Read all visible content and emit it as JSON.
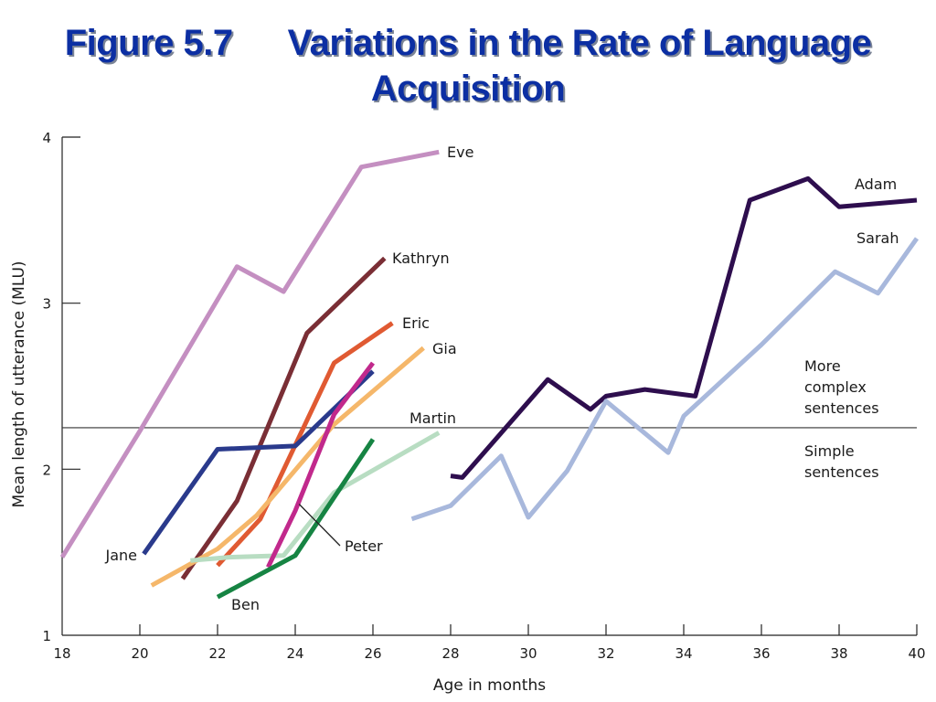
{
  "title": {
    "figure": "Figure 5.7",
    "line1": "Variations in the Rate of Language",
    "line2": "Acquisition"
  },
  "chart_data": {
    "type": "line",
    "xlabel": "Age in months",
    "ylabel": "Mean length of utterance (MLU)",
    "xlim": [
      18,
      40
    ],
    "ylim": [
      1,
      4
    ],
    "xticks": [
      "18",
      "20",
      "22",
      "24",
      "26",
      "28",
      "30",
      "32",
      "34",
      "36",
      "38",
      "40"
    ],
    "yticks": [
      "1",
      "2",
      "3",
      "4"
    ],
    "threshold": {
      "y": 2.25,
      "label_above": [
        "More",
        "complex",
        "sentences"
      ],
      "label_below": [
        "Simple",
        "sentences"
      ]
    },
    "series": [
      {
        "name": "Eve",
        "color": "#c48fc1",
        "points": [
          [
            18,
            1.47
          ],
          [
            20,
            2.23
          ],
          [
            22.5,
            3.22
          ],
          [
            23.7,
            3.07
          ],
          [
            25.7,
            3.82
          ],
          [
            27.7,
            3.91
          ]
        ]
      },
      {
        "name": "Kathryn",
        "color": "#7a2e35",
        "points": [
          [
            21.1,
            1.34
          ],
          [
            22.5,
            1.81
          ],
          [
            24.3,
            2.82
          ],
          [
            26.3,
            3.27
          ]
        ]
      },
      {
        "name": "Eric",
        "color": "#e05a32",
        "points": [
          [
            22,
            1.42
          ],
          [
            23.1,
            1.7
          ],
          [
            25,
            2.64
          ],
          [
            26.5,
            2.88
          ]
        ]
      },
      {
        "name": "Gia",
        "color": "#f5b76a",
        "points": [
          [
            20.3,
            1.3
          ],
          [
            22,
            1.52
          ],
          [
            23,
            1.72
          ],
          [
            25,
            2.27
          ],
          [
            27.3,
            2.73
          ]
        ]
      },
      {
        "name": "Jane",
        "color": "#2a3a8c",
        "points": [
          [
            20.1,
            1.49
          ],
          [
            22,
            2.12
          ],
          [
            24,
            2.14
          ],
          [
            26,
            2.59
          ]
        ]
      },
      {
        "name": "Martin",
        "color": "#b8ddc2",
        "points": [
          [
            21.3,
            1.45
          ],
          [
            22.3,
            1.47
          ],
          [
            23.7,
            1.48
          ],
          [
            25,
            1.86
          ],
          [
            27.7,
            2.22
          ]
        ]
      },
      {
        "name": "Peter",
        "color": "#c1298c",
        "points": [
          [
            23.3,
            1.41
          ],
          [
            24,
            1.75
          ],
          [
            25,
            2.33
          ],
          [
            26,
            2.64
          ]
        ]
      },
      {
        "name": "Ben",
        "color": "#168443",
        "points": [
          [
            22,
            1.23
          ],
          [
            24,
            1.48
          ],
          [
            26,
            2.18
          ]
        ]
      },
      {
        "name": "Adam",
        "color": "#2e0e4e",
        "points": [
          [
            28,
            1.96
          ],
          [
            28.3,
            1.95
          ],
          [
            30.5,
            2.54
          ],
          [
            31.6,
            2.36
          ],
          [
            32,
            2.44
          ],
          [
            33,
            2.48
          ],
          [
            34.3,
            2.44
          ],
          [
            35.7,
            3.62
          ],
          [
            37.2,
            3.75
          ],
          [
            38,
            3.58
          ],
          [
            40,
            3.62
          ]
        ]
      },
      {
        "name": "Sarah",
        "color": "#a8b8dc",
        "points": [
          [
            27,
            1.7
          ],
          [
            28,
            1.78
          ],
          [
            29.3,
            2.08
          ],
          [
            30,
            1.71
          ],
          [
            31,
            1.99
          ],
          [
            32,
            2.41
          ],
          [
            33.6,
            2.1
          ],
          [
            34,
            2.32
          ],
          [
            36,
            2.75
          ],
          [
            37.9,
            3.19
          ],
          [
            39,
            3.06
          ],
          [
            40,
            3.39
          ]
        ]
      }
    ],
    "annotation_pointer": {
      "from": [
        25.2,
        1.56
      ],
      "to": [
        24.1,
        1.79
      ]
    }
  }
}
